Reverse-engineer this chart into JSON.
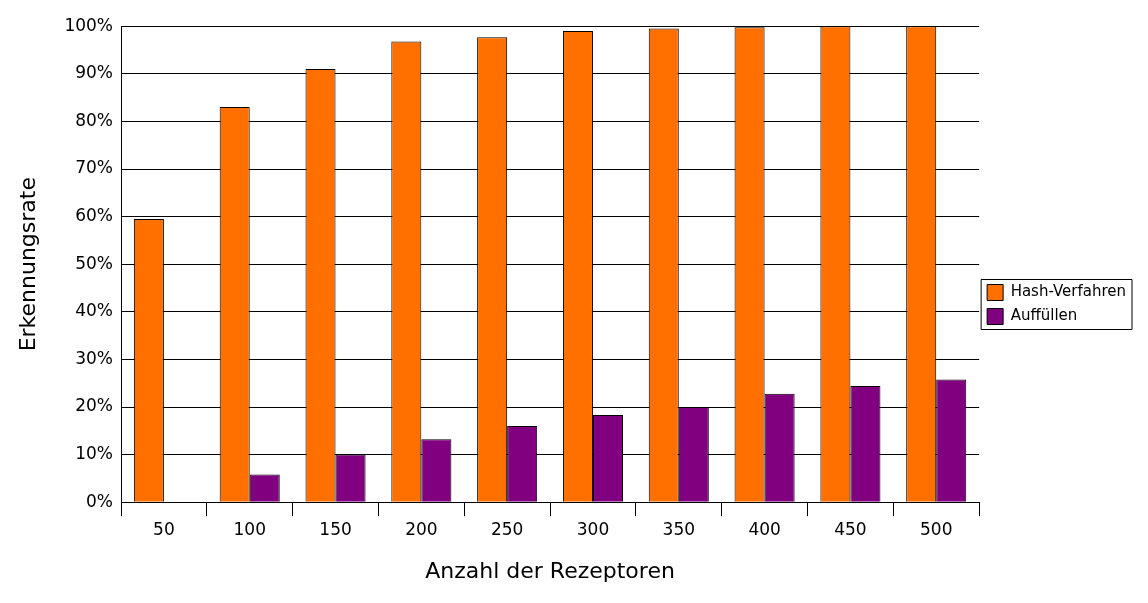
{
  "chart_data": {
    "type": "bar",
    "xlabel": "Anzahl der Rezeptoren",
    "ylabel": "Erkennungsrate",
    "categories": [
      "50",
      "100",
      "150",
      "200",
      "250",
      "300",
      "350",
      "400",
      "450",
      "500"
    ],
    "series": [
      {
        "name": "Hash-Verfahren",
        "color": "#ff7000",
        "values": [
          59.5,
          83,
          91,
          96.8,
          97.7,
          99,
          99.5,
          99.8,
          100,
          100
        ]
      },
      {
        "name": "Auffüllen",
        "color": "#800080",
        "values": [
          0,
          5.8,
          10,
          13.2,
          16,
          18.3,
          20,
          22.8,
          24.4,
          25.8
        ]
      }
    ],
    "ylim": [
      0,
      100
    ],
    "yticks": [
      {
        "value": 0,
        "label": "0%"
      },
      {
        "value": 10,
        "label": "10%"
      },
      {
        "value": 20,
        "label": "20%"
      },
      {
        "value": 30,
        "label": "30%"
      },
      {
        "value": 40,
        "label": "40%"
      },
      {
        "value": 50,
        "label": "50%"
      },
      {
        "value": 60,
        "label": "60%"
      },
      {
        "value": 70,
        "label": "70%"
      },
      {
        "value": 80,
        "label": "80%"
      },
      {
        "value": 90,
        "label": "90%"
      },
      {
        "value": 100,
        "label": "100%"
      }
    ],
    "grid": "y",
    "legend": "right"
  }
}
